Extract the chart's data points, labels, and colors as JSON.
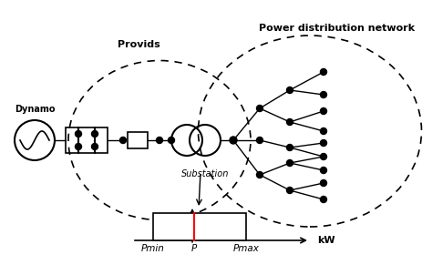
{
  "labels": {
    "dynamo": "Dynamo",
    "provids": "Provids",
    "power_dist": "Power distribution network",
    "substation": "Substation",
    "kw": "kW",
    "pmin": "Pmin",
    "p": "P",
    "pmax": "Pmax"
  },
  "colors": {
    "background": "#ffffff",
    "line": "#000000",
    "dot": "#000000",
    "red_line": "#ff0000"
  },
  "figsize": [
    4.74,
    3.02
  ],
  "dpi": 100
}
